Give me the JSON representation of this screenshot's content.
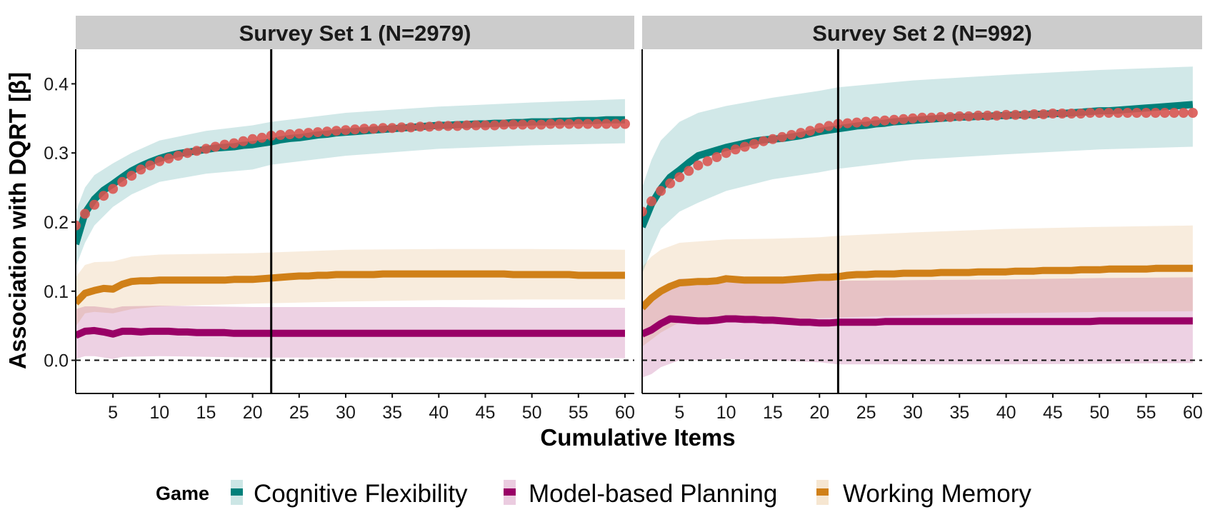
{
  "chart_data": {
    "type": "line",
    "xlabel": "Cumulative Items",
    "ylabel": "Association with DQRT [β]",
    "xlim": [
      1,
      61
    ],
    "ylim": [
      -0.048,
      0.45
    ],
    "x_ticks": [
      5,
      10,
      15,
      20,
      25,
      30,
      35,
      40,
      45,
      50,
      55,
      60
    ],
    "y_ticks": [
      0.0,
      0.1,
      0.2,
      0.3,
      0.4
    ],
    "y_tick_labels": [
      "0.0",
      "0.1",
      "0.2",
      "0.3",
      "0.4"
    ],
    "grid": false,
    "reference_hline": 0.0,
    "reference_vline": 22,
    "legend": {
      "position": "bottom",
      "title": "Game",
      "entries": [
        {
          "label": "Cognitive Flexibility",
          "line_color": "#00807A",
          "fill_color": "#CCE6E5"
        },
        {
          "label": "Model-based Planning",
          "line_color": "#990066",
          "fill_color": "#EBCCE0"
        },
        {
          "label": "Working Memory",
          "line_color": "#D08018",
          "fill_color": "#F6E6D1"
        }
      ]
    },
    "dots_color": "#D9534F",
    "panels": [
      {
        "title": "Survey Set 1 (N=2979)",
        "series": [
          {
            "name": "Cognitive Flexibility",
            "values": [
              0.168,
              0.213,
              0.233,
              0.246,
              0.255,
              0.265,
              0.274,
              0.281,
              0.287,
              0.292,
              0.296,
              0.299,
              0.301,
              0.303,
              0.305,
              0.307,
              0.308,
              0.309,
              0.311,
              0.312,
              0.314,
              0.316,
              0.319,
              0.321,
              0.322,
              0.324,
              0.326,
              0.327,
              0.329,
              0.33,
              0.331,
              0.332,
              0.333,
              0.334,
              0.335,
              0.336,
              0.337,
              0.338,
              0.339,
              0.34,
              0.34,
              0.341,
              0.341,
              0.342,
              0.342,
              0.343,
              0.343,
              0.344,
              0.344,
              0.345,
              0.345,
              0.345,
              0.346,
              0.346,
              0.347,
              0.347,
              0.347,
              0.348,
              0.348,
              0.348
            ],
            "ci_x": [
              1,
              2,
              3,
              5,
              7,
              10,
              15,
              20,
              22,
              30,
              40,
              50,
              60
            ],
            "ci_upper": [
              0.215,
              0.25,
              0.268,
              0.285,
              0.3,
              0.318,
              0.332,
              0.34,
              0.345,
              0.358,
              0.367,
              0.373,
              0.378
            ],
            "ci_lower": [
              0.135,
              0.17,
              0.195,
              0.222,
              0.24,
              0.258,
              0.27,
              0.276,
              0.283,
              0.296,
              0.306,
              0.311,
              0.314
            ]
          },
          {
            "name": "Model-based Planning",
            "values": [
              0.036,
              0.042,
              0.043,
              0.041,
              0.038,
              0.042,
              0.042,
              0.041,
              0.042,
              0.042,
              0.042,
              0.041,
              0.041,
              0.04,
              0.04,
              0.04,
              0.04,
              0.039,
              0.039,
              0.039,
              0.039,
              0.039,
              0.039,
              0.039,
              0.039,
              0.039,
              0.039,
              0.039,
              0.039,
              0.039,
              0.039,
              0.039,
              0.039,
              0.039,
              0.039,
              0.039,
              0.039,
              0.039,
              0.039,
              0.039,
              0.039,
              0.039,
              0.039,
              0.039,
              0.039,
              0.039,
              0.039,
              0.039,
              0.039,
              0.039,
              0.039,
              0.039,
              0.039,
              0.039,
              0.039,
              0.039,
              0.039,
              0.039,
              0.039,
              0.039
            ],
            "ci_x": [
              1,
              2,
              3,
              5,
              6,
              10,
              20,
              30,
              40,
              50,
              60
            ],
            "ci_upper": [
              0.074,
              0.078,
              0.078,
              0.075,
              0.078,
              0.079,
              0.077,
              0.077,
              0.077,
              0.076,
              0.076
            ],
            "ci_lower": [
              0.002,
              0.006,
              0.006,
              0.002,
              0.005,
              0.006,
              0.004,
              0.004,
              0.004,
              0.003,
              0.003
            ]
          },
          {
            "name": "Working Memory",
            "values": [
              0.083,
              0.097,
              0.101,
              0.104,
              0.103,
              0.11,
              0.114,
              0.115,
              0.115,
              0.116,
              0.116,
              0.116,
              0.116,
              0.116,
              0.116,
              0.116,
              0.116,
              0.117,
              0.117,
              0.117,
              0.118,
              0.119,
              0.12,
              0.121,
              0.122,
              0.122,
              0.123,
              0.123,
              0.124,
              0.124,
              0.124,
              0.124,
              0.124,
              0.125,
              0.125,
              0.125,
              0.125,
              0.125,
              0.125,
              0.125,
              0.125,
              0.125,
              0.125,
              0.125,
              0.125,
              0.125,
              0.125,
              0.124,
              0.124,
              0.124,
              0.124,
              0.124,
              0.124,
              0.124,
              0.123,
              0.123,
              0.123,
              0.123,
              0.123,
              0.123
            ],
            "ci_x": [
              1,
              2,
              3,
              5,
              7,
              10,
              20,
              30,
              40,
              50,
              60
            ],
            "ci_upper": [
              0.12,
              0.138,
              0.142,
              0.143,
              0.15,
              0.153,
              0.155,
              0.16,
              0.161,
              0.161,
              0.16
            ],
            "ci_lower": [
              0.049,
              0.068,
              0.07,
              0.068,
              0.074,
              0.078,
              0.082,
              0.085,
              0.087,
              0.088,
              0.088
            ]
          }
        ],
        "dots": [
          0.195,
          0.212,
          0.225,
          0.238,
          0.248,
          0.258,
          0.267,
          0.276,
          0.282,
          0.288,
          0.292,
          0.296,
          0.3,
          0.303,
          0.306,
          0.309,
          0.312,
          0.314,
          0.317,
          0.32,
          0.322,
          0.325,
          0.326,
          0.327,
          0.328,
          0.329,
          0.33,
          0.331,
          0.332,
          0.333,
          0.334,
          0.335,
          0.335,
          0.336,
          0.336,
          0.337,
          0.337,
          0.338,
          0.338,
          0.339,
          0.339,
          0.339,
          0.34,
          0.34,
          0.34,
          0.34,
          0.341,
          0.341,
          0.341,
          0.341,
          0.341,
          0.342,
          0.342,
          0.342,
          0.342,
          0.342,
          0.342,
          0.342,
          0.342,
          0.342
        ]
      },
      {
        "title": "Survey Set 2 (N=992)",
        "series": [
          {
            "name": "Cognitive Flexibility",
            "values": [
              0.193,
              0.226,
              0.248,
              0.265,
              0.275,
              0.286,
              0.296,
              0.3,
              0.304,
              0.308,
              0.311,
              0.314,
              0.317,
              0.319,
              0.32,
              0.321,
              0.323,
              0.325,
              0.328,
              0.331,
              0.333,
              0.335,
              0.337,
              0.339,
              0.34,
              0.342,
              0.343,
              0.345,
              0.346,
              0.347,
              0.348,
              0.349,
              0.35,
              0.351,
              0.352,
              0.352,
              0.353,
              0.353,
              0.354,
              0.354,
              0.355,
              0.355,
              0.356,
              0.356,
              0.357,
              0.357,
              0.358,
              0.359,
              0.36,
              0.361,
              0.361,
              0.362,
              0.363,
              0.364,
              0.365,
              0.366,
              0.367,
              0.368,
              0.369,
              0.37
            ],
            "ci_x": [
              1,
              2,
              3,
              5,
              7,
              10,
              15,
              20,
              22,
              30,
              40,
              50,
              60
            ],
            "ci_upper": [
              0.25,
              0.29,
              0.318,
              0.345,
              0.358,
              0.368,
              0.38,
              0.39,
              0.395,
              0.405,
              0.413,
              0.42,
              0.425
            ],
            "ci_lower": [
              0.125,
              0.16,
              0.19,
              0.215,
              0.228,
              0.245,
              0.262,
              0.272,
              0.277,
              0.29,
              0.298,
              0.305,
              0.309
            ]
          },
          {
            "name": "Model-based Planning",
            "values": [
              0.038,
              0.044,
              0.053,
              0.06,
              0.059,
              0.058,
              0.057,
              0.057,
              0.058,
              0.06,
              0.06,
              0.059,
              0.059,
              0.058,
              0.058,
              0.057,
              0.056,
              0.055,
              0.055,
              0.054,
              0.054,
              0.055,
              0.055,
              0.055,
              0.055,
              0.055,
              0.056,
              0.056,
              0.056,
              0.056,
              0.056,
              0.056,
              0.056,
              0.056,
              0.056,
              0.056,
              0.056,
              0.056,
              0.056,
              0.056,
              0.056,
              0.056,
              0.056,
              0.056,
              0.056,
              0.056,
              0.056,
              0.056,
              0.056,
              0.057,
              0.057,
              0.057,
              0.057,
              0.057,
              0.057,
              0.057,
              0.057,
              0.057,
              0.057,
              0.057
            ],
            "ci_x": [
              1,
              2,
              3,
              5,
              7,
              10,
              15,
              20,
              22,
              30,
              40,
              50,
              60
            ],
            "ci_upper": [
              0.085,
              0.095,
              0.105,
              0.118,
              0.118,
              0.118,
              0.118,
              0.116,
              0.115,
              0.116,
              0.117,
              0.119,
              0.12
            ],
            "ci_lower": [
              -0.025,
              -0.02,
              -0.01,
              0.0,
              0.0,
              0.002,
              0.0,
              -0.003,
              -0.006,
              -0.006,
              -0.006,
              -0.005,
              -0.004
            ]
          },
          {
            "name": "Working Memory",
            "values": [
              0.076,
              0.09,
              0.1,
              0.107,
              0.112,
              0.113,
              0.114,
              0.114,
              0.115,
              0.118,
              0.117,
              0.116,
              0.116,
              0.116,
              0.116,
              0.116,
              0.117,
              0.118,
              0.119,
              0.12,
              0.12,
              0.121,
              0.123,
              0.124,
              0.124,
              0.125,
              0.125,
              0.125,
              0.126,
              0.126,
              0.126,
              0.126,
              0.127,
              0.127,
              0.127,
              0.127,
              0.128,
              0.128,
              0.128,
              0.128,
              0.129,
              0.129,
              0.129,
              0.13,
              0.13,
              0.13,
              0.13,
              0.131,
              0.131,
              0.131,
              0.132,
              0.132,
              0.132,
              0.132,
              0.132,
              0.133,
              0.133,
              0.133,
              0.133,
              0.133
            ],
            "ci_x": [
              1,
              2,
              3,
              5,
              7,
              10,
              15,
              20,
              22,
              30,
              40,
              50,
              60
            ],
            "ci_upper": [
              0.135,
              0.15,
              0.16,
              0.17,
              0.172,
              0.175,
              0.176,
              0.178,
              0.18,
              0.185,
              0.19,
              0.193,
              0.195
            ],
            "ci_lower": [
              0.02,
              0.03,
              0.04,
              0.055,
              0.058,
              0.06,
              0.06,
              0.061,
              0.062,
              0.065,
              0.068,
              0.07,
              0.071
            ]
          }
        ],
        "dots": [
          0.215,
          0.23,
          0.245,
          0.256,
          0.265,
          0.274,
          0.282,
          0.288,
          0.294,
          0.3,
          0.305,
          0.309,
          0.313,
          0.317,
          0.32,
          0.323,
          0.326,
          0.329,
          0.332,
          0.336,
          0.339,
          0.342,
          0.343,
          0.344,
          0.345,
          0.346,
          0.347,
          0.348,
          0.349,
          0.35,
          0.351,
          0.351,
          0.352,
          0.352,
          0.353,
          0.353,
          0.354,
          0.354,
          0.354,
          0.355,
          0.355,
          0.355,
          0.356,
          0.356,
          0.357,
          0.357,
          0.357,
          0.357,
          0.358,
          0.358,
          0.358,
          0.358,
          0.358,
          0.358,
          0.358,
          0.358,
          0.358,
          0.358,
          0.358,
          0.358
        ]
      }
    ]
  }
}
